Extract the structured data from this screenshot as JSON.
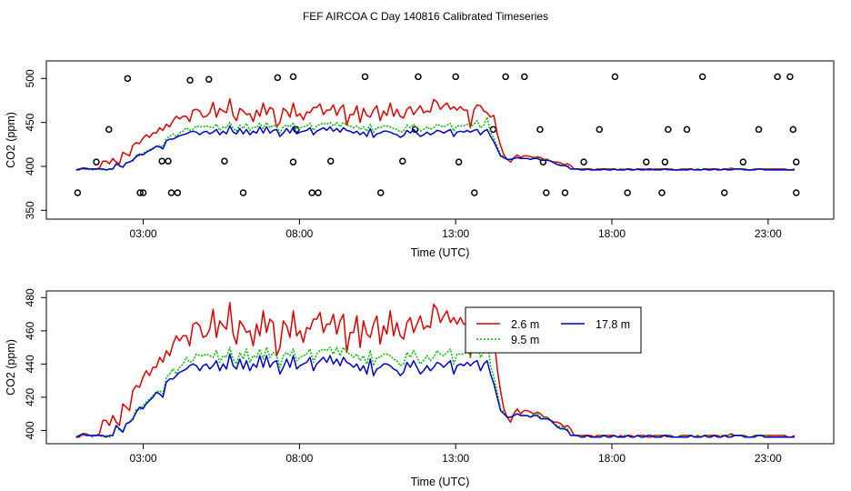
{
  "title": "FEF AIRCOA C  Day 140816  Calibrated Timeseries",
  "colors": {
    "s26": "#dd0000",
    "s95": "#00bb00",
    "s178": "#0000cc",
    "markers": "#000000"
  },
  "chart_data": [
    {
      "type": "line",
      "title": "FEF AIRCOA C  Day 140816  Calibrated Timeseries",
      "xlabel": "Time (UTC)",
      "ylabel": "CO2 (ppm)",
      "xlim": [
        -0.1,
        25.1
      ],
      "ylim": [
        340,
        520
      ],
      "xticks": [
        3,
        8,
        13,
        18,
        23
      ],
      "xtick_labels": [
        "03:00",
        "08:00",
        "13:00",
        "18:00",
        "23:00"
      ],
      "yticks": [
        350,
        400,
        450,
        500
      ],
      "ytick_labels": [
        "350",
        "400",
        "450",
        "500"
      ],
      "markers": {
        "shape": "open-circle",
        "x": [
          1.5,
          1.9,
          2.5,
          3.0,
          3.6,
          4.1,
          5.1,
          0.9,
          2.9,
          3.8,
          4.5,
          3.9,
          5.6,
          6.2,
          7.3,
          7.8,
          8.4,
          9.0,
          7.8,
          7.9,
          8.6,
          10.1,
          10.6,
          11.3,
          11.7,
          11.8,
          13.0,
          13.6,
          13.1,
          14.2,
          14.6,
          15.2,
          15.7,
          15.8,
          15.9,
          16.5,
          17.1,
          17.6,
          18.1,
          18.5,
          19.1,
          19.6,
          19.7,
          19.8,
          20.4,
          20.9,
          21.6,
          22.2,
          22.7,
          23.3,
          23.7,
          23.8,
          23.9,
          23.9
        ],
        "y": [
          405,
          442,
          500,
          370,
          406,
          370,
          499,
          370,
          370,
          406,
          498,
          370,
          406,
          370,
          501,
          405,
          370,
          406,
          502,
          442,
          370,
          502,
          370,
          406,
          442,
          502,
          502,
          370,
          405,
          442,
          502,
          502,
          442,
          405,
          370,
          370,
          405,
          442,
          502,
          370,
          405,
          370,
          405,
          442,
          442,
          502,
          370,
          405,
          442,
          502,
          502,
          442,
          405,
          370
        ]
      },
      "series": [
        {
          "name": "2.6 m",
          "color": "#dd0000",
          "y": [
            396,
            396,
            398,
            398,
            397,
            397,
            397,
            398,
            406,
            406,
            403,
            409,
            405,
            403,
            416,
            414,
            412,
            424,
            427,
            426,
            432,
            436,
            433,
            438,
            438,
            444,
            441,
            448,
            445,
            452,
            457,
            454,
            457,
            457,
            451,
            464,
            465,
            463,
            456,
            457,
            461,
            473,
            456,
            466,
            463,
            461,
            477,
            458,
            452,
            466,
            463,
            459,
            460,
            451,
            464,
            457,
            472,
            459,
            467,
            465,
            445,
            450,
            466,
            463,
            456,
            472,
            457,
            460,
            453,
            462,
            461,
            467,
            467,
            471,
            459,
            464,
            464,
            470,
            458,
            466,
            470,
            447,
            459,
            459,
            469,
            450,
            466,
            458,
            456,
            464,
            469,
            452,
            463,
            458,
            472,
            457,
            465,
            457,
            455,
            465,
            468,
            459,
            464,
            469,
            461,
            463,
            462,
            476,
            473,
            465,
            469,
            472,
            465,
            468,
            464,
            468,
            464,
            464,
            444,
            464,
            470,
            469,
            463,
            461,
            456,
            458,
            437,
            424,
            413,
            408,
            405,
            410,
            413,
            410,
            412,
            412,
            411,
            410,
            411,
            410,
            408,
            408,
            406,
            405,
            405,
            404,
            402,
            403,
            401,
            397,
            397,
            397,
            397,
            397,
            397,
            396,
            397,
            397,
            397,
            397,
            397,
            397,
            396,
            397,
            396,
            397,
            397,
            396,
            397,
            397,
            397,
            396,
            396,
            397,
            397,
            397,
            397,
            396,
            397,
            396,
            396,
            397,
            397,
            397,
            397,
            396,
            397,
            396,
            397,
            397,
            397,
            397,
            397,
            396,
            397,
            397,
            398,
            397,
            397,
            397,
            397,
            396,
            396,
            397,
            397,
            397,
            397,
            397,
            397,
            397,
            397,
            397,
            397,
            396,
            396,
            397
          ]
        },
        {
          "name": "9.5 m",
          "color": "#00bb00",
          "y": [
            396,
            397,
            397,
            397,
            397,
            396,
            397,
            397,
            396,
            397,
            396,
            397,
            403,
            400,
            399,
            404,
            405,
            406,
            413,
            412,
            415,
            417,
            419,
            421,
            423,
            424,
            422,
            432,
            434,
            437,
            434,
            438,
            440,
            444,
            441,
            442,
            446,
            445,
            445,
            446,
            445,
            444,
            448,
            441,
            445,
            444,
            450,
            443,
            440,
            447,
            443,
            449,
            441,
            445,
            444,
            449,
            443,
            450,
            444,
            447,
            445,
            438,
            445,
            447,
            445,
            449,
            442,
            444,
            445,
            446,
            449,
            441,
            446,
            448,
            449,
            448,
            450,
            446,
            450,
            445,
            450,
            447,
            446,
            444,
            446,
            442,
            445,
            440,
            448,
            439,
            444,
            444,
            446,
            446,
            445,
            443,
            442,
            439,
            440,
            447,
            444,
            448,
            444,
            440,
            442,
            445,
            442,
            444,
            448,
            446,
            445,
            447,
            449,
            440,
            446,
            446,
            446,
            448,
            445,
            448,
            452,
            444,
            447,
            456,
            439,
            432,
            423,
            413,
            411,
            408,
            408,
            409,
            410,
            409,
            409,
            409,
            408,
            410,
            410,
            408,
            408,
            408,
            406,
            404,
            403,
            402,
            402,
            401,
            397,
            397,
            397,
            397,
            396,
            397,
            396,
            396,
            396,
            397,
            397,
            397,
            396,
            397,
            396,
            396,
            397,
            397,
            396,
            396,
            397,
            397,
            396,
            397,
            397,
            396,
            397,
            396,
            397,
            397,
            397,
            396,
            396,
            397,
            396,
            397,
            397,
            396,
            397,
            396,
            397,
            397,
            396,
            397,
            396,
            397,
            397,
            397,
            397,
            397,
            397,
            397,
            397,
            396,
            396,
            397,
            397,
            397,
            397,
            397,
            396,
            396,
            396,
            397,
            396,
            396,
            396,
            396
          ]
        },
        {
          "name": "17.8 m",
          "color": "#0000cc",
          "y": [
            396,
            397,
            398,
            397,
            397,
            397,
            397,
            397,
            397,
            396,
            397,
            397,
            403,
            401,
            399,
            404,
            405,
            407,
            411,
            414,
            413,
            416,
            418,
            420,
            423,
            422,
            420,
            429,
            431,
            431,
            433,
            435,
            436,
            437,
            439,
            440,
            439,
            436,
            439,
            440,
            437,
            439,
            442,
            436,
            440,
            437,
            446,
            439,
            437,
            443,
            437,
            442,
            436,
            440,
            438,
            445,
            438,
            445,
            438,
            441,
            442,
            434,
            438,
            443,
            438,
            445,
            437,
            439,
            440,
            441,
            444,
            436,
            440,
            442,
            444,
            441,
            445,
            440,
            443,
            439,
            444,
            441,
            440,
            438,
            440,
            436,
            439,
            434,
            443,
            433,
            437,
            438,
            440,
            440,
            439,
            437,
            436,
            433,
            435,
            441,
            438,
            442,
            438,
            434,
            436,
            439,
            436,
            438,
            441,
            440,
            438,
            440,
            442,
            434,
            439,
            440,
            439,
            441,
            439,
            441,
            442,
            436,
            440,
            442,
            434,
            428,
            420,
            412,
            410,
            408,
            408,
            409,
            410,
            409,
            409,
            409,
            408,
            409,
            409,
            407,
            407,
            407,
            406,
            404,
            402,
            401,
            401,
            400,
            397,
            397,
            397,
            396,
            396,
            397,
            396,
            396,
            396,
            396,
            397,
            396,
            396,
            397,
            396,
            396,
            396,
            397,
            396,
            396,
            397,
            396,
            396,
            397,
            397,
            396,
            396,
            396,
            397,
            397,
            396,
            396,
            396,
            396,
            396,
            396,
            397,
            396,
            396,
            396,
            397,
            396,
            396,
            397,
            396,
            396,
            397,
            396,
            396,
            397,
            397,
            397,
            396,
            396,
            396,
            396,
            397,
            397,
            396,
            396,
            396,
            396,
            396,
            396,
            396,
            396,
            396,
            396
          ]
        }
      ]
    },
    {
      "type": "line",
      "xlabel": "Time (UTC)",
      "ylabel": "CO2 (ppm)",
      "xlim": [
        -0.1,
        25.1
      ],
      "ylim": [
        392,
        484
      ],
      "xticks": [
        3,
        8,
        13,
        18,
        23
      ],
      "xtick_labels": [
        "03:00",
        "08:00",
        "13:00",
        "18:00",
        "23:00"
      ],
      "yticks": [
        400,
        420,
        440,
        460,
        480
      ],
      "ytick_labels": [
        "400",
        "420",
        "440",
        "460",
        "480"
      ],
      "legend": {
        "position": "top-right",
        "entries": [
          "2.6 m",
          "9.5 m",
          "17.8 m"
        ]
      },
      "series_ref": "same as chart 1 (2.6 m, 9.5 m, 17.8 m)"
    }
  ]
}
